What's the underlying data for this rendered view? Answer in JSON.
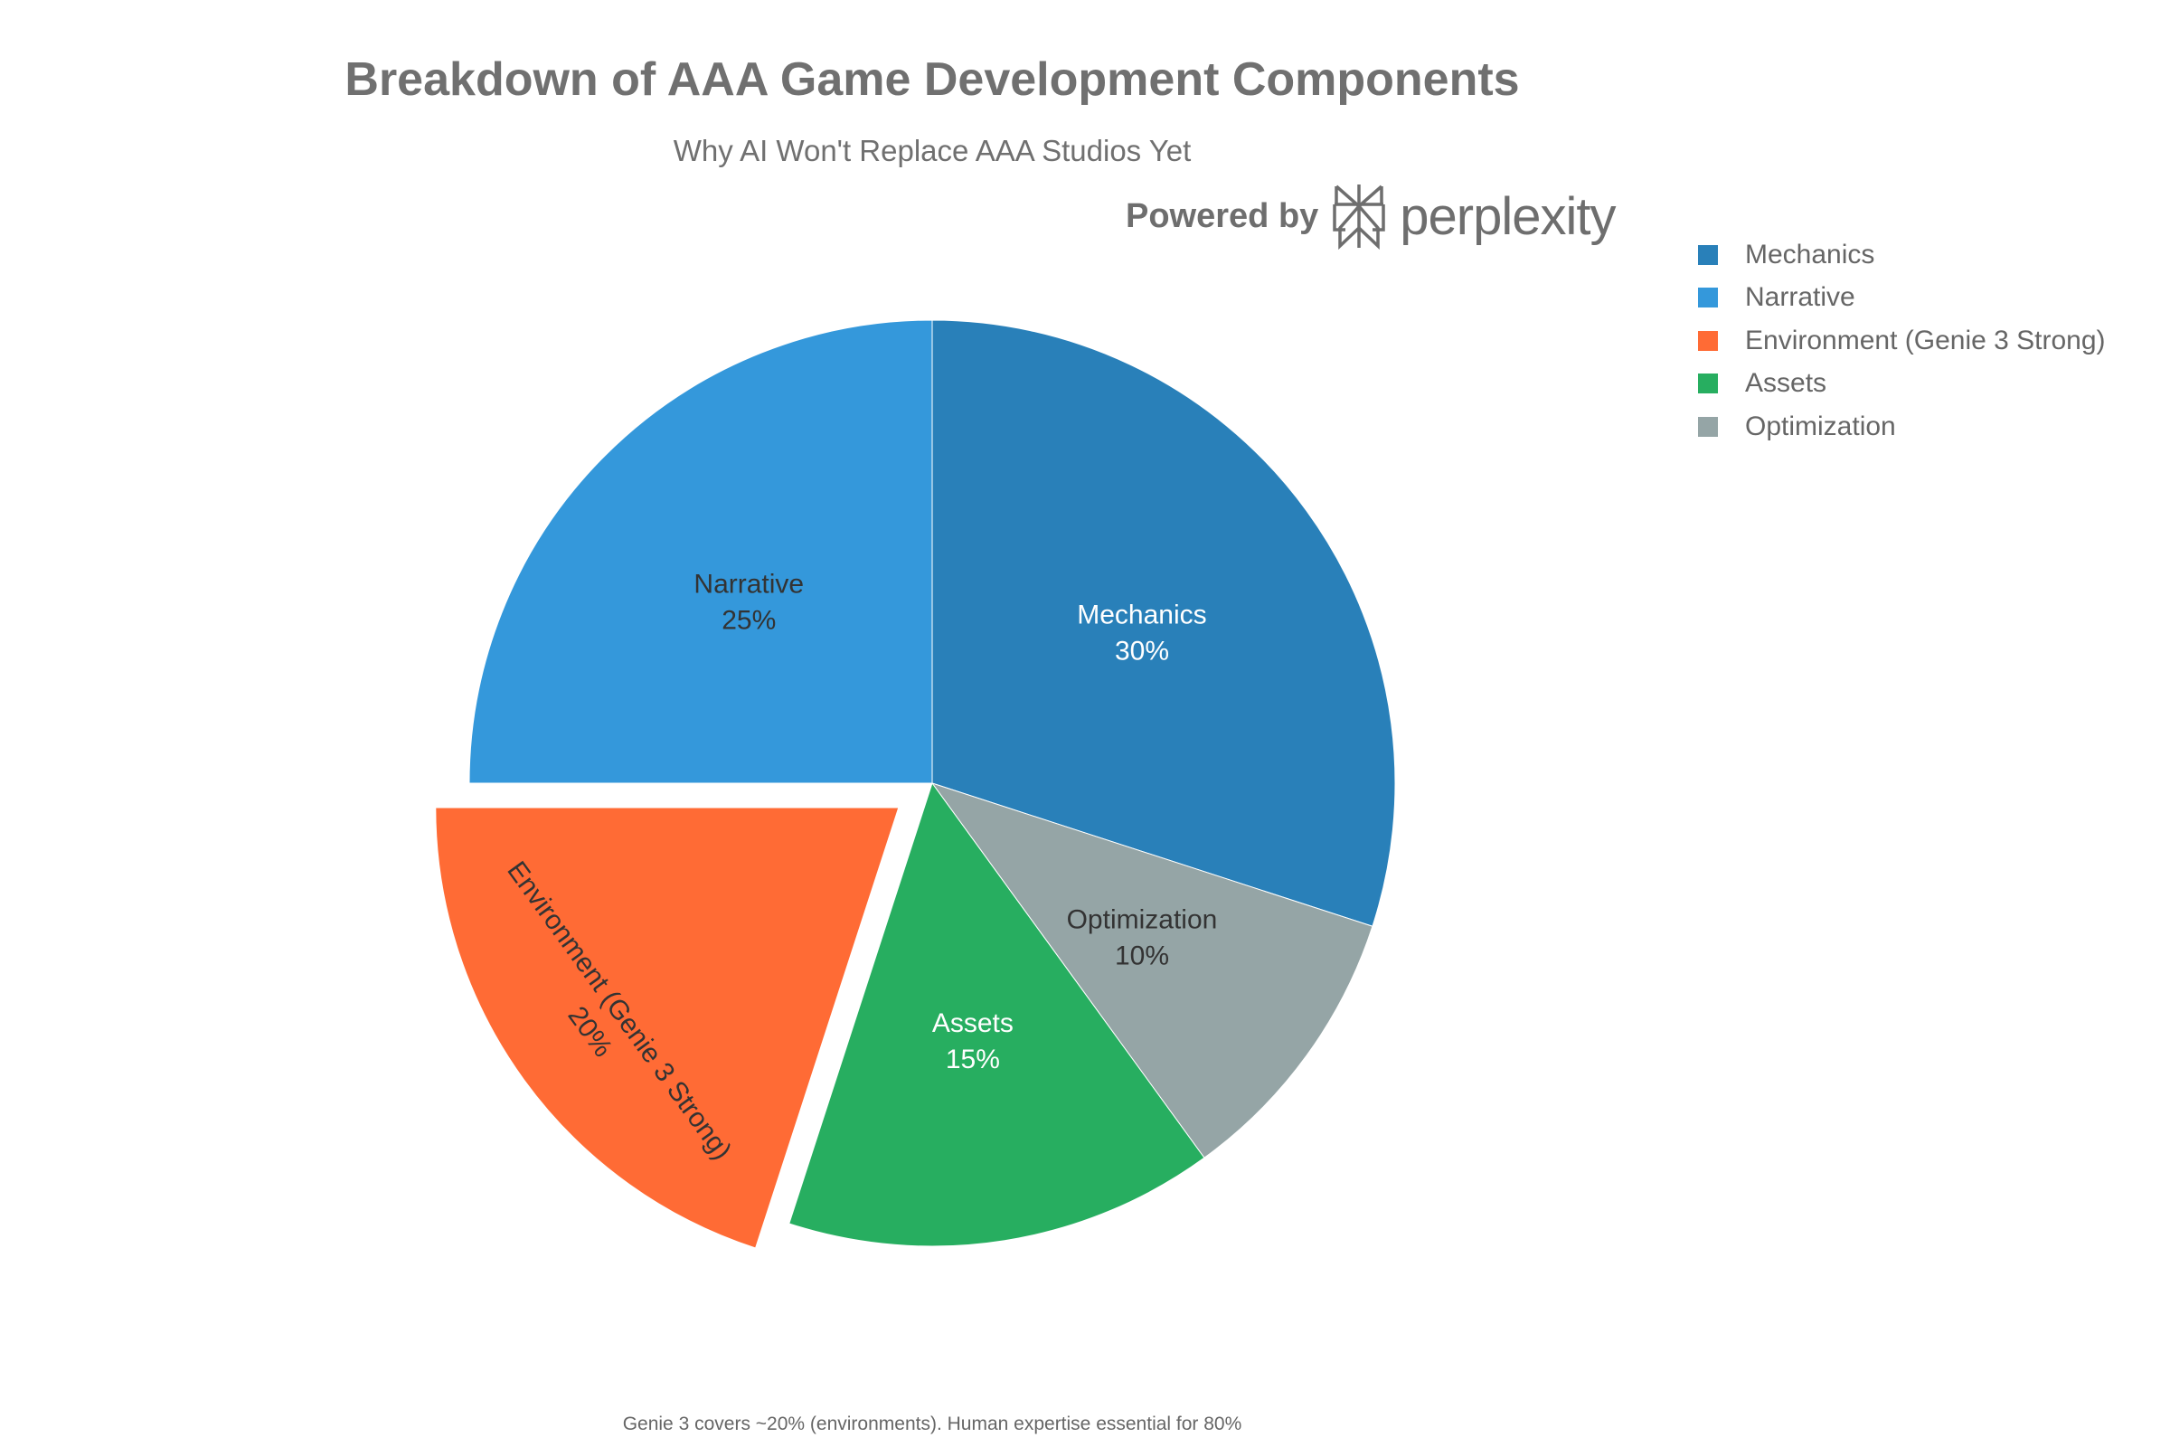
{
  "header": {
    "title": "Breakdown of AAA Game Development Components",
    "subtitle": "Why AI Won't Replace AAA Studios Yet",
    "powered_by": "Powered by",
    "brand": "perplexity"
  },
  "footnote": "Genie 3 covers ~20% (environments). Human expertise essential for 80%",
  "chart_data": {
    "type": "pie",
    "title": "Breakdown of AAA Game Development Components",
    "subtitle": "Why AI Won't Replace AAA Studios Yet",
    "legend_position": "top-right",
    "direction": "clockwise from top",
    "slices": [
      {
        "label": "Mechanics",
        "value": 30,
        "text": "30%",
        "color": "#2980B9",
        "text_color": "#ffffff",
        "pulled": false
      },
      {
        "label": "Optimization",
        "value": 10,
        "text": "10%",
        "color": "#95A5A6",
        "text_color": "#333333",
        "pulled": false
      },
      {
        "label": "Assets",
        "value": 15,
        "text": "15%",
        "color": "#27AE60",
        "text_color": "#ffffff",
        "pulled": false
      },
      {
        "label": "Environment (Genie 3 Strong)",
        "value": 20,
        "text": "20%",
        "color": "#FF6B35",
        "text_color": "#333333",
        "pulled": true
      },
      {
        "label": "Narrative",
        "value": 25,
        "text": "25%",
        "color": "#3498DB",
        "text_color": "#333333",
        "pulled": false
      }
    ],
    "legend": [
      {
        "label": "Mechanics",
        "color": "#2980B9"
      },
      {
        "label": "Narrative",
        "color": "#3498DB"
      },
      {
        "label": "Environment (Genie 3 Strong)",
        "color": "#FF6B35"
      },
      {
        "label": "Assets",
        "color": "#27AE60"
      },
      {
        "label": "Optimization",
        "color": "#95A5A6"
      }
    ]
  }
}
